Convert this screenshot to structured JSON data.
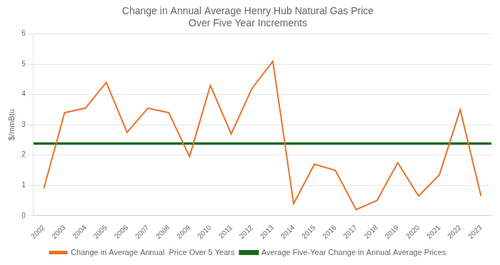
{
  "chart_data": {
    "type": "line",
    "title": "Change in Annual Average Henry Hub Natural Gas Price\nOver Five Year Increments",
    "ylabel": "$/mmBtu",
    "categories": [
      "2002",
      "2003",
      "2004",
      "2005",
      "2006",
      "2007",
      "2008",
      "2009",
      "2010",
      "2011",
      "2012",
      "2013",
      "2014",
      "2015",
      "2016",
      "2017",
      "2018",
      "2019",
      "2020",
      "2021",
      "2022",
      "2023"
    ],
    "series": [
      {
        "name": "Change in Average Annual  Price Over 5 Years",
        "color": "#E8722A",
        "values": [
          0.9,
          3.4,
          3.55,
          4.4,
          2.75,
          3.55,
          3.4,
          1.95,
          4.3,
          2.7,
          4.2,
          5.1,
          0.4,
          1.7,
          1.5,
          0.2,
          0.5,
          1.75,
          0.65,
          1.35,
          3.5,
          0.65
        ]
      },
      {
        "name": "Average Five-Year Change in Annual Average Prices",
        "color": "#1a6b1a",
        "type": "hline",
        "value": 2.38
      }
    ],
    "ylim": [
      0,
      6
    ],
    "yticks": [
      0,
      1,
      2,
      3,
      4,
      5,
      6
    ],
    "grid": true,
    "legend": "bottom"
  }
}
